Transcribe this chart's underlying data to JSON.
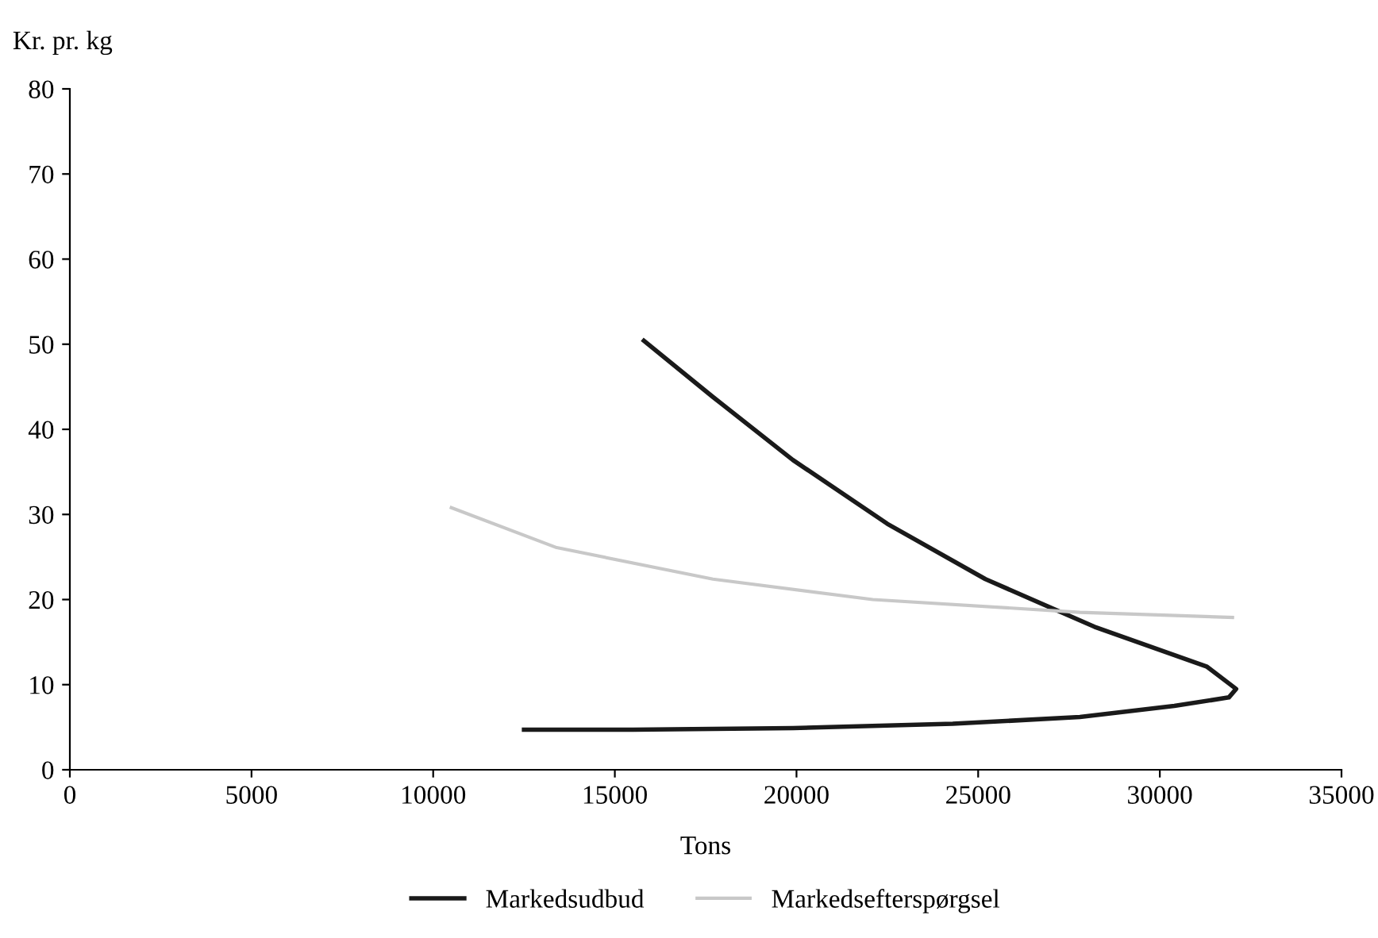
{
  "chart_data": {
    "type": "line",
    "xlabel": "Tons",
    "ylabel": "Kr. pr. kg",
    "xlim": [
      0,
      35000
    ],
    "ylim": [
      0,
      80
    ],
    "xticks": [
      0,
      5000,
      10000,
      15000,
      20000,
      25000,
      30000,
      35000
    ],
    "yticks": [
      0,
      10,
      20,
      30,
      40,
      50,
      60,
      70,
      80
    ],
    "grid": false,
    "legend": "bottom",
    "marker": "none",
    "line_style": "solid",
    "series": [
      {
        "name": "Markedsudbud",
        "color": "#1a1a1a",
        "x": [
          15800,
          17700,
          19900,
          22500,
          25200,
          28200,
          31300,
          32100,
          31900,
          30400,
          27800,
          24300,
          19900,
          15500,
          12500
        ],
        "values": [
          50.4,
          43.8,
          36.4,
          28.9,
          22.4,
          16.8,
          12.1,
          9.5,
          8.5,
          7.5,
          6.2,
          5.4,
          4.9,
          4.7,
          4.7
        ]
      },
      {
        "name": "Markedsefterspørgsel",
        "color": "#c8c8c8",
        "x": [
          10500,
          13400,
          17700,
          22100,
          27800,
          32000
        ],
        "values": [
          30.8,
          26.1,
          22.4,
          20.0,
          18.5,
          17.9
        ]
      }
    ]
  }
}
